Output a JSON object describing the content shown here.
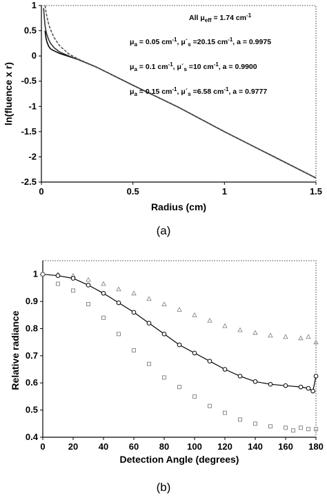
{
  "chart_data": [
    {
      "id": "a",
      "type": "line",
      "caption": "(a)",
      "xlabel": "Radius (cm)",
      "ylabel": "ln(fluence x r)",
      "xlim": [
        0,
        1.5
      ],
      "ylim": [
        -2.5,
        1
      ],
      "xticks": [
        0,
        0.5,
        1,
        1.5
      ],
      "xtick_labels": [
        "0",
        "0.5",
        "1",
        "1.5"
      ],
      "yticks": [
        1,
        0.5,
        0,
        -0.5,
        -1,
        -1.5,
        -2,
        -2.5
      ],
      "ytick_labels": [
        "1",
        "0.5",
        "0",
        "-0.5",
        "-1",
        "-1.5",
        "-2",
        "-2.5"
      ],
      "grid": false,
      "annotations": [
        {
          "runs": [
            [
              "All μ",
              ""
            ],
            [
              "eff",
              "sub"
            ],
            [
              " = 1.74 cm",
              ""
            ],
            [
              "-1",
              "sup"
            ]
          ]
        },
        {
          "runs": [
            [
              "μ",
              ""
            ],
            [
              "a",
              "sub"
            ],
            [
              " = 0.05 cm",
              ""
            ],
            [
              "-1",
              "sup"
            ],
            [
              ", μ´",
              ""
            ],
            [
              "s",
              "sub"
            ],
            [
              " =20.15 cm",
              ""
            ],
            [
              "-1",
              "sup"
            ],
            [
              ", a = 0.9975",
              ""
            ]
          ]
        },
        {
          "runs": [
            [
              "μ",
              ""
            ],
            [
              "a",
              "sub"
            ],
            [
              " = 0.1 cm",
              ""
            ],
            [
              "-1",
              "sup"
            ],
            [
              ", μ´",
              ""
            ],
            [
              "s",
              "sub"
            ],
            [
              " =10 cm",
              ""
            ],
            [
              "-1",
              "sup"
            ],
            [
              ", a = 0.9900",
              ""
            ]
          ]
        },
        {
          "runs": [
            [
              "μ",
              ""
            ],
            [
              "a",
              "sub"
            ],
            [
              " = 0.15 cm",
              ""
            ],
            [
              "-1",
              "sup"
            ],
            [
              ", μ´",
              ""
            ],
            [
              "s",
              "sub"
            ],
            [
              " =6.58 cm",
              ""
            ],
            [
              "-1",
              "sup"
            ],
            [
              ", a = 0.9777",
              ""
            ]
          ]
        }
      ],
      "series": [
        {
          "style": "solid",
          "color": "#000000",
          "x": [
            0.02,
            0.025,
            0.03,
            0.04,
            0.05,
            0.07,
            0.1,
            0.15,
            0.2,
            0.3,
            0.5,
            0.75,
            1.0,
            1.25,
            1.5
          ],
          "y": [
            0.5,
            0.36,
            0.28,
            0.19,
            0.14,
            0.1,
            0.05,
            -0.01,
            -0.07,
            -0.22,
            -0.58,
            -1.02,
            -1.5,
            -1.96,
            -2.42
          ]
        },
        {
          "style": "solid",
          "color": "#333333",
          "x": [
            0.012,
            0.015,
            0.02,
            0.025,
            0.03,
            0.04,
            0.05,
            0.07,
            0.1,
            0.15,
            0.2,
            0.3,
            0.5,
            0.75,
            1.0,
            1.25,
            1.5
          ],
          "y": [
            0.95,
            0.8,
            0.6,
            0.5,
            0.42,
            0.32,
            0.25,
            0.16,
            0.08,
            0.0,
            -0.07,
            -0.22,
            -0.58,
            -1.02,
            -1.5,
            -1.96,
            -2.42
          ]
        },
        {
          "style": "dashed",
          "color": "#555555",
          "x": [
            0.02,
            0.025,
            0.03,
            0.04,
            0.05,
            0.07,
            0.1,
            0.15,
            0.2,
            0.3,
            0.5,
            0.75,
            1.0,
            1.25,
            1.5
          ],
          "y": [
            1.0,
            0.88,
            0.78,
            0.63,
            0.52,
            0.36,
            0.2,
            0.04,
            -0.06,
            -0.22,
            -0.58,
            -1.02,
            -1.5,
            -1.96,
            -2.42
          ]
        }
      ]
    },
    {
      "id": "b",
      "type": "scatter",
      "caption": "(b)",
      "xlabel": "Detection Angle (degrees)",
      "ylabel": "Relative radiance",
      "xlim": [
        0,
        180
      ],
      "ylim": [
        0.4,
        1.05
      ],
      "xticks": [
        0,
        20,
        40,
        60,
        80,
        100,
        120,
        140,
        160,
        180
      ],
      "xtick_labels": [
        "0",
        "20",
        "40",
        "60",
        "80",
        "100",
        "120",
        "140",
        "160",
        "180"
      ],
      "yticks": [
        0.4,
        0.5,
        0.6,
        0.7,
        0.8,
        0.9,
        1
      ],
      "ytick_labels": [
        "0.4",
        "0.5",
        "0.6",
        "0.7",
        "0.8",
        "0.9",
        "1"
      ],
      "grid": false,
      "series": [
        {
          "marker": "triangle",
          "color": "#888888",
          "line": false,
          "x": [
            0,
            10,
            20,
            30,
            40,
            50,
            60,
            70,
            80,
            90,
            100,
            110,
            120,
            130,
            140,
            150,
            160,
            170,
            175,
            180
          ],
          "y": [
            1.0,
            1.0,
            0.995,
            0.98,
            0.965,
            0.945,
            0.93,
            0.91,
            0.89,
            0.87,
            0.85,
            0.83,
            0.81,
            0.795,
            0.785,
            0.775,
            0.77,
            0.765,
            0.77,
            0.75
          ]
        },
        {
          "marker": "circle",
          "color": "#000000",
          "line": true,
          "x": [
            0,
            10,
            20,
            30,
            40,
            50,
            60,
            70,
            80,
            90,
            100,
            110,
            120,
            130,
            140,
            150,
            160,
            170,
            175,
            178,
            180
          ],
          "y": [
            1.0,
            0.995,
            0.985,
            0.96,
            0.93,
            0.895,
            0.86,
            0.82,
            0.78,
            0.74,
            0.71,
            0.68,
            0.65,
            0.625,
            0.605,
            0.595,
            0.59,
            0.585,
            0.58,
            0.57,
            0.625
          ]
        },
        {
          "marker": "square",
          "color": "#888888",
          "line": false,
          "x": [
            0,
            10,
            20,
            30,
            40,
            50,
            60,
            70,
            80,
            90,
            100,
            110,
            120,
            130,
            140,
            150,
            160,
            165,
            170,
            175,
            180
          ],
          "y": [
            1.0,
            0.965,
            0.94,
            0.89,
            0.84,
            0.78,
            0.72,
            0.67,
            0.62,
            0.585,
            0.55,
            0.515,
            0.49,
            0.465,
            0.45,
            0.44,
            0.435,
            0.425,
            0.435,
            0.43,
            0.43
          ]
        }
      ]
    }
  ]
}
